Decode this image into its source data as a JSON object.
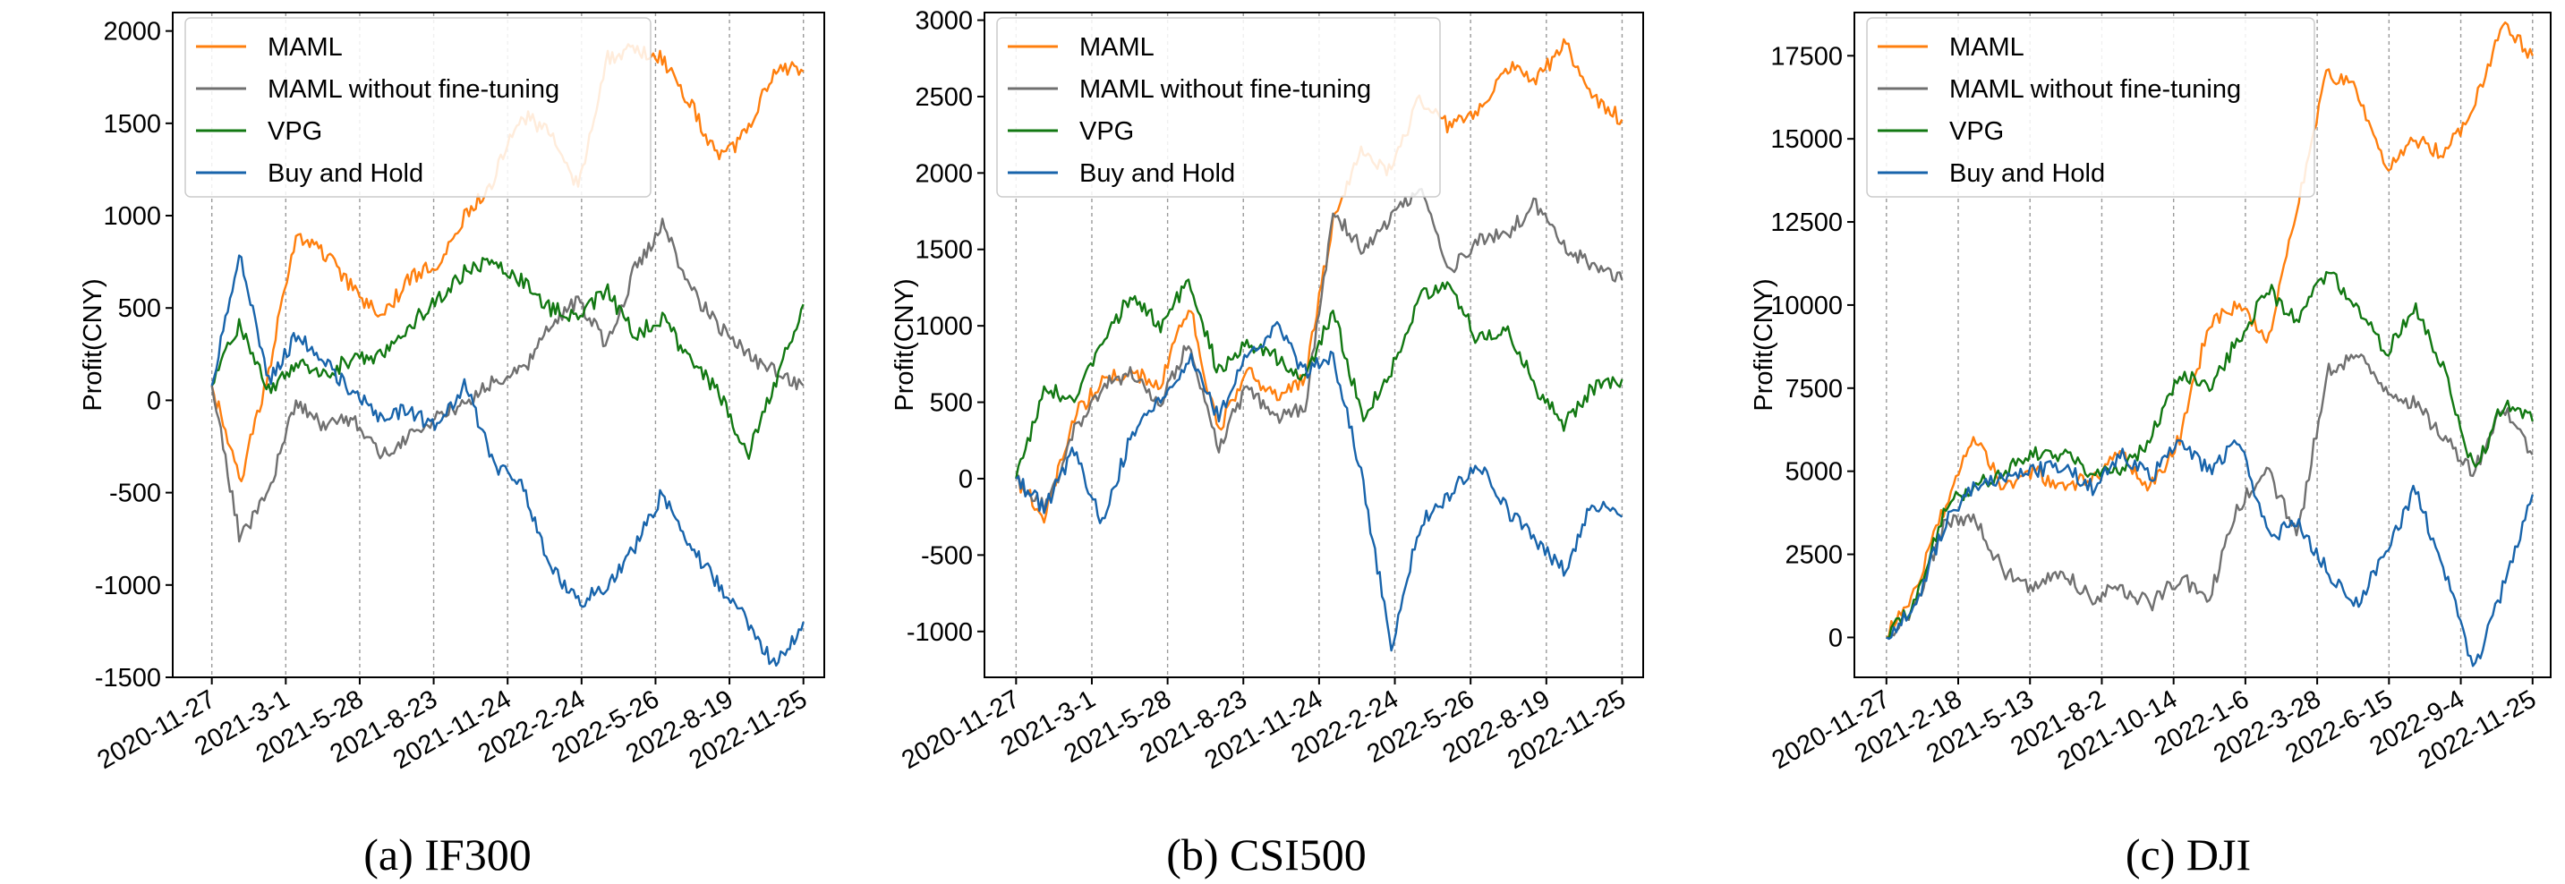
{
  "chart_data": [
    {
      "type": "line",
      "caption": "(a) IF300",
      "ylabel": "Profit(CNY)",
      "ylim": [
        -1500,
        2100
      ],
      "yticks": [
        -1500,
        -1000,
        -500,
        0,
        500,
        1000,
        1500,
        2000
      ],
      "x_tick_labels": [
        "2020-11-27",
        "2021-3-1",
        "2021-5-28",
        "2021-8-23",
        "2021-11-24",
        "2022-2-24",
        "2022-5-26",
        "2022-8-19",
        "2022-11-25"
      ],
      "legend_position": "upper-left",
      "series": [
        {
          "name": "MAML",
          "color": "#ff7f0e",
          "values": [
            80,
            -450,
            150,
            900,
            800,
            600,
            450,
            650,
            750,
            1000,
            1200,
            1550,
            1450,
            1150,
            1850,
            1900,
            1850,
            1600,
            1300,
            1450,
            1800,
            1780
          ]
        },
        {
          "name": "MAML without fine-tuning",
          "color": "#707070",
          "values": [
            80,
            -750,
            -500,
            0,
            -150,
            -100,
            -300,
            -200,
            -100,
            0,
            100,
            150,
            400,
            550,
            300,
            700,
            950,
            600,
            400,
            250,
            150,
            80
          ]
        },
        {
          "name": "VPG",
          "color": "#127812",
          "values": [
            80,
            420,
            50,
            200,
            150,
            220,
            250,
            400,
            550,
            700,
            750,
            650,
            500,
            450,
            600,
            350,
            450,
            200,
            50,
            -300,
            100,
            520
          ]
        },
        {
          "name": "Buy and Hold",
          "color": "#1864ab",
          "values": [
            80,
            800,
            100,
            350,
            200,
            50,
            -100,
            -50,
            -150,
            100,
            -350,
            -450,
            -900,
            -1100,
            -1000,
            -800,
            -500,
            -800,
            -1000,
            -1200,
            -1450,
            -1200
          ]
        }
      ]
    },
    {
      "type": "line",
      "caption": "(b) CSI500",
      "ylabel": "Profit(CNY)",
      "ylim": [
        -1300,
        3050
      ],
      "yticks": [
        -1000,
        -500,
        0,
        500,
        1000,
        1500,
        2000,
        2500,
        3000
      ],
      "x_tick_labels": [
        "2020-11-27",
        "2021-3-1",
        "2021-5-28",
        "2021-8-23",
        "2021-11-24",
        "2022-2-24",
        "2022-5-26",
        "2022-8-19",
        "2022-11-25"
      ],
      "legend_position": "upper-left",
      "series": [
        {
          "name": "MAML",
          "color": "#ff7f0e",
          "values": [
            0,
            -250,
            400,
            650,
            700,
            600,
            1150,
            300,
            700,
            550,
            650,
            1700,
            2150,
            2000,
            2500,
            2300,
            2400,
            2700,
            2600,
            2850,
            2500,
            2350
          ]
        },
        {
          "name": "MAML without fine-tuning",
          "color": "#707070",
          "values": [
            0,
            -200,
            300,
            600,
            700,
            500,
            900,
            200,
            600,
            400,
            450,
            1750,
            1500,
            1700,
            1900,
            1350,
            1550,
            1600,
            1800,
            1500,
            1400,
            1300
          ]
        },
        {
          "name": "VPG",
          "color": "#127812",
          "values": [
            0,
            600,
            500,
            900,
            1200,
            1000,
            1300,
            700,
            900,
            800,
            650,
            1100,
            400,
            700,
            1200,
            1300,
            900,
            1000,
            600,
            350,
            600,
            650
          ]
        },
        {
          "name": "Buy and Hold",
          "color": "#1864ab",
          "values": [
            0,
            -200,
            200,
            -300,
            300,
            500,
            800,
            400,
            800,
            1000,
            700,
            800,
            0,
            -1100,
            -300,
            -100,
            100,
            -200,
            -400,
            -600,
            -150,
            -250
          ]
        }
      ]
    },
    {
      "type": "line",
      "caption": "(c) DJI",
      "ylabel": "Profit(CNY)",
      "ylim": [
        -1200,
        18800
      ],
      "yticks": [
        0,
        2500,
        5000,
        7500,
        10000,
        12500,
        15000,
        17500
      ],
      "x_tick_labels": [
        "2020-11-27",
        "2021-2-18",
        "2021-5-13",
        "2021-8-2",
        "2021-10-14",
        "2022-1-6",
        "2022-3-28",
        "2022-6-15",
        "2022-9-4",
        "2022-11-25"
      ],
      "legend_position": "upper-left",
      "series": [
        {
          "name": "MAML",
          "color": "#ff7f0e",
          "values": [
            0,
            1500,
            4000,
            6000,
            4500,
            5000,
            4500,
            4800,
            5500,
            4500,
            6000,
            9500,
            10000,
            9000,
            13000,
            17000,
            16500,
            14000,
            15000,
            14500,
            16000,
            18500,
            17500
          ]
        },
        {
          "name": "MAML without fine-tuning",
          "color": "#707070",
          "values": [
            0,
            1000,
            3500,
            3500,
            2000,
            1500,
            2000,
            1200,
            1500,
            1000,
            1800,
            1200,
            4000,
            5000,
            3000,
            8000,
            8500,
            7500,
            7000,
            6000,
            5000,
            7000,
            5500
          ]
        },
        {
          "name": "VPG",
          "color": "#127812",
          "values": [
            0,
            1000,
            4000,
            4500,
            5000,
            5500,
            5500,
            5000,
            5000,
            6000,
            8000,
            7500,
            9000,
            10500,
            9500,
            11000,
            10000,
            8500,
            10000,
            8000,
            5000,
            7000,
            6500
          ]
        },
        {
          "name": "Buy and Hold",
          "color": "#1864ab",
          "values": [
            0,
            1000,
            3500,
            4500,
            4800,
            5000,
            5200,
            4500,
            5500,
            4800,
            6000,
            5000,
            6000,
            3000,
            3500,
            2000,
            1000,
            2500,
            4500,
            2000,
            -1000,
            1500,
            4300
          ]
        }
      ]
    }
  ]
}
